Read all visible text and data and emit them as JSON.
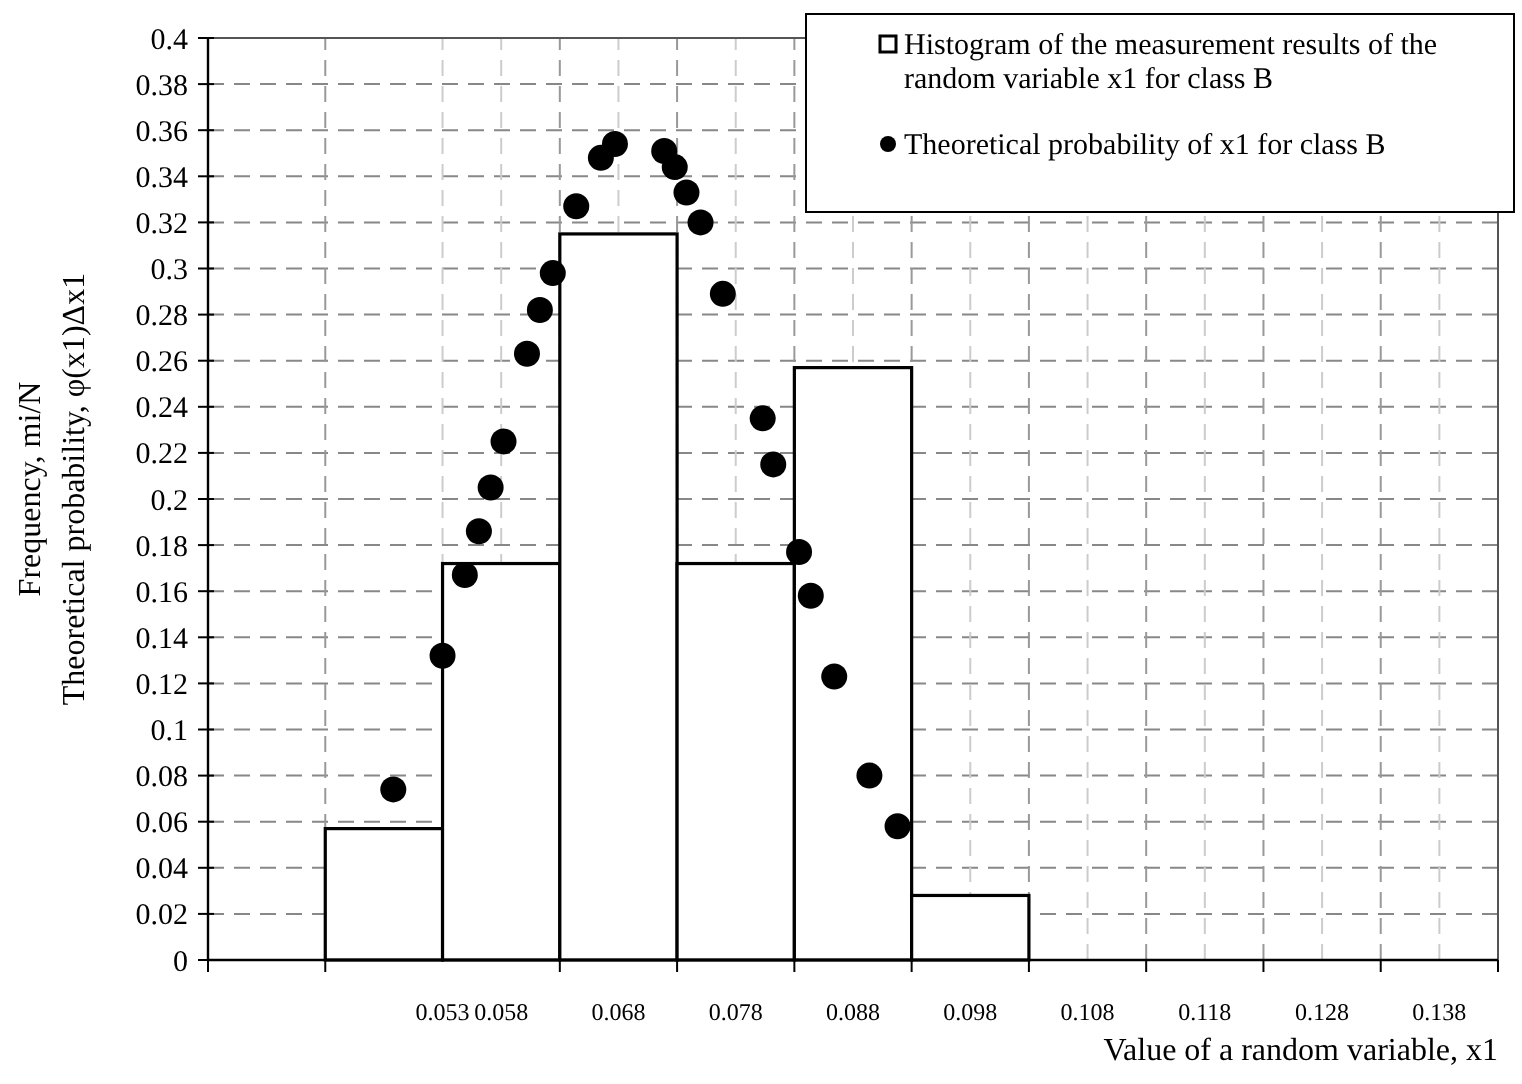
{
  "chart_data": {
    "type": "histogram",
    "xlabel": "Value of a random variable, x1",
    "ylabel": "Frequency,  mi/N\nTheoretical probability,  φ(x1)Δx1",
    "bins": [
      0.043,
      0.053,
      0.063,
      0.073,
      0.083,
      0.093,
      0.103
    ],
    "xlim": [
      0.033,
      0.143
    ],
    "xticks": [
      {
        "value": 0.033,
        "label": null
      },
      {
        "value": 0.043,
        "label": null
      },
      0.053,
      0.058,
      {
        "value": 0.063,
        "label": null
      },
      0.068,
      {
        "value": 0.073,
        "label": null
      },
      0.078,
      {
        "value": 0.083,
        "label": null
      },
      0.088,
      {
        "value": 0.093,
        "label": null
      },
      0.098,
      {
        "value": 0.103,
        "label": null
      },
      0.108,
      {
        "value": 0.113,
        "label": null
      },
      0.118,
      {
        "value": 0.123,
        "label": null
      },
      0.128,
      {
        "value": 0.133,
        "label": null
      },
      0.138,
      {
        "value": 0.143,
        "label": null
      }
    ],
    "ylim": [
      0,
      0.4
    ],
    "yticks": [
      0,
      0.02,
      0.04,
      0.06,
      0.08,
      0.1,
      0.12,
      0.14,
      0.16,
      0.18,
      0.2,
      0.22,
      0.24,
      0.26,
      0.28,
      0.3,
      0.32,
      0.34,
      0.36,
      0.38,
      0.4
    ],
    "grid": true,
    "legend": "top right",
    "marker": "circle",
    "series": [
      {
        "name": "Histogram of the measurement results of the random variable x1 for class B",
        "color": "#ffffff",
        "values": [
          0.057,
          0.172,
          0.315,
          0.172,
          0.257,
          0.028
        ]
      },
      {
        "type": "scatter",
        "name": "Theoretical probability of x1 for class B",
        "color": "#000000",
        "x": [
          0.0488,
          0.053,
          0.0549,
          0.0561,
          0.0571,
          0.0582,
          0.0602,
          0.0613,
          0.0624,
          0.0644,
          0.0665,
          0.0677,
          0.0719,
          0.0728,
          0.0738,
          0.075,
          0.0769,
          0.0803,
          0.0812,
          0.0834,
          0.0844,
          0.0864,
          0.0894,
          0.0918
        ],
        "values": [
          0.074,
          0.132,
          0.167,
          0.186,
          0.205,
          0.225,
          0.263,
          0.282,
          0.298,
          0.327,
          0.348,
          0.354,
          0.351,
          0.344,
          0.333,
          0.32,
          0.289,
          0.235,
          0.215,
          0.177,
          0.158,
          0.123,
          0.08,
          0.058
        ]
      }
    ]
  }
}
